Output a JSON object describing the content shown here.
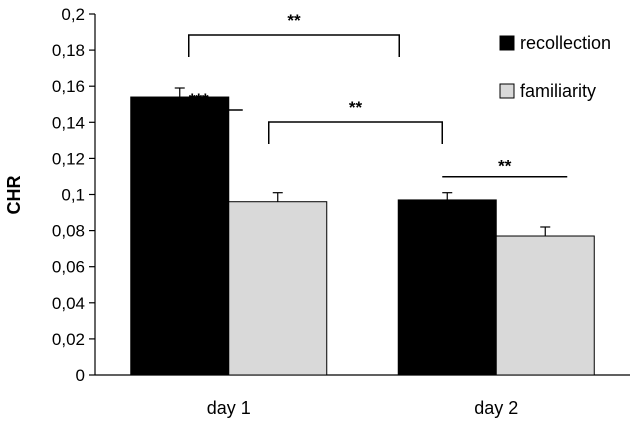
{
  "chart_data": {
    "type": "bar",
    "ylabel": "CHR",
    "ylim": [
      0,
      0.2
    ],
    "yticks": [
      "0",
      "0,02",
      "0,04",
      "0,06",
      "0,08",
      "0,1",
      "0,12",
      "0,14",
      "0,16",
      "0,18",
      "0,2"
    ],
    "categories": [
      "day 1",
      "day 2"
    ],
    "series": [
      {
        "name": "recollection",
        "color": "#000000",
        "values": [
          0.154,
          0.097
        ],
        "errors": [
          0.005,
          0.004
        ]
      },
      {
        "name": "familiarity",
        "color": "#d9d9d9",
        "values": [
          0.096,
          0.077
        ],
        "errors": [
          0.005,
          0.005
        ]
      }
    ],
    "grid": false,
    "legend": "top-right",
    "significance": [
      {
        "label": "***"
      },
      {
        "label": "**"
      },
      {
        "label": "**"
      },
      {
        "label": "**"
      }
    ]
  }
}
